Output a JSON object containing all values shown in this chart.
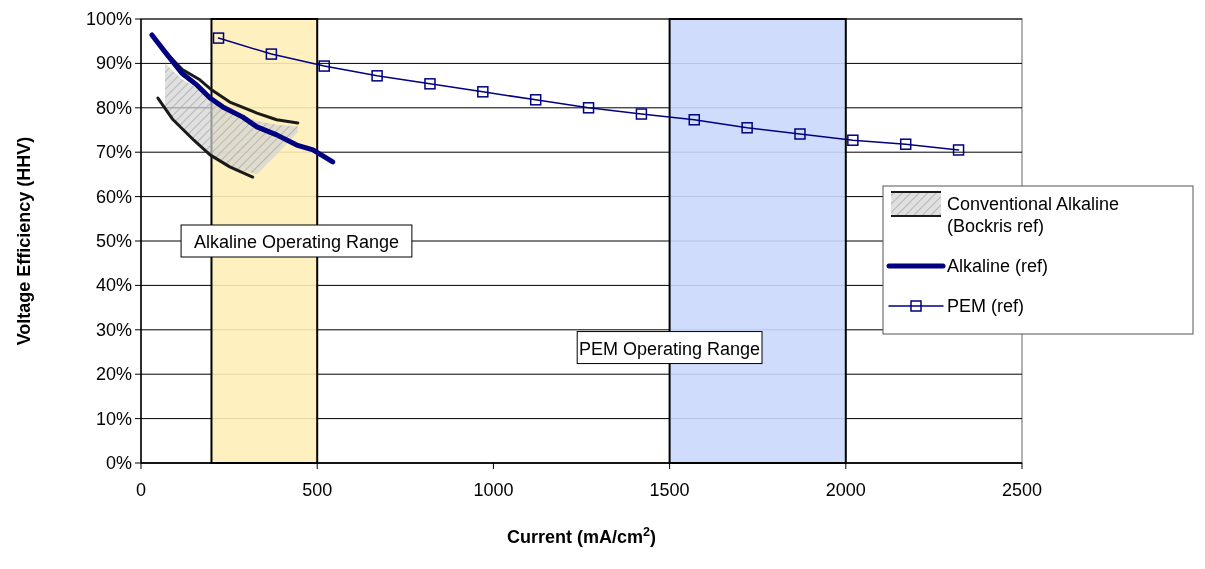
{
  "chart_data": {
    "type": "line",
    "xlabel": "Current (mA/cm$^{2}$)",
    "ylabel": "Voltage Efficiency (HHV)",
    "xlim": [
      0,
      2500
    ],
    "xticks": [
      0,
      500,
      1000,
      1500,
      2000,
      2500
    ],
    "ylim": [
      0,
      100
    ],
    "yticks": [
      {
        "value": 0,
        "label": "0%"
      },
      {
        "value": 10,
        "label": "10%"
      },
      {
        "value": 20,
        "label": "20%"
      },
      {
        "value": 30,
        "label": "30%"
      },
      {
        "value": 40,
        "label": "40%"
      },
      {
        "value": 50,
        "label": "50%"
      },
      {
        "value": 60,
        "label": "60%"
      },
      {
        "value": 70,
        "label": "70%"
      },
      {
        "value": 80,
        "label": "80%"
      },
      {
        "value": 90,
        "label": "90%"
      },
      {
        "value": 100,
        "label": "100%"
      }
    ],
    "grid": "y",
    "legend": "right",
    "bands": [
      {
        "axis": "x",
        "from": 200,
        "to": 500,
        "label": "Alkaline Operating Range",
        "color": "#fff0b8"
      },
      {
        "axis": "x",
        "from": 1500,
        "to": 2000,
        "label": "PEM Operating Range",
        "color": "#cad8fb"
      }
    ],
    "series": [
      {
        "name": "Conventional Alkaline (Bockris ref)",
        "type": "line",
        "color": "#1a1a1a",
        "marker": "none",
        "x": [
          68,
          116,
          167,
          201,
          252,
          329,
          385,
          445
        ],
        "values": [
          92.6,
          88.7,
          86.3,
          84.0,
          81.3,
          78.8,
          77.3,
          76.6
        ],
        "lower": [
          80,
          75,
          72,
          69.4,
          66.7,
          65,
          69.5,
          74.5
        ],
        "upper": [
          90,
          86.5,
          84,
          82,
          79.5,
          77,
          76.2,
          75.8
        ]
      },
      {
        "type": "line",
        "color": "#1a1a1a",
        "marker": "none",
        "x": [
          48,
          91,
          150,
          196,
          252,
          317
        ],
        "values": [
          82.2,
          77.3,
          72.7,
          69.4,
          66.7,
          64.4
        ]
      },
      {
        "name": "Alkaline (ref)",
        "type": "line",
        "color": "#000080",
        "marker": "none",
        "x": [
          31,
          68,
          116,
          159,
          196,
          232,
          289,
          329,
          385,
          442,
          488,
          544
        ],
        "values": [
          96.4,
          92.6,
          87.8,
          85.1,
          82.2,
          80.2,
          77.9,
          75.7,
          73.9,
          71.6,
          70.5,
          67.8
        ]
      },
      {
        "name": "PEM (ref)",
        "type": "line",
        "color": "#000080",
        "marker": "square",
        "x": [
          220,
          370,
          520,
          670,
          820,
          970,
          1120,
          1270,
          1420,
          1570,
          1720,
          1870,
          2020,
          2170,
          2320
        ],
        "values": [
          95.7,
          92.1,
          89.4,
          87.2,
          85.4,
          83.6,
          81.8,
          80.0,
          78.6,
          77.3,
          75.5,
          74.1,
          72.7,
          71.8,
          70.5
        ]
      }
    ]
  }
}
